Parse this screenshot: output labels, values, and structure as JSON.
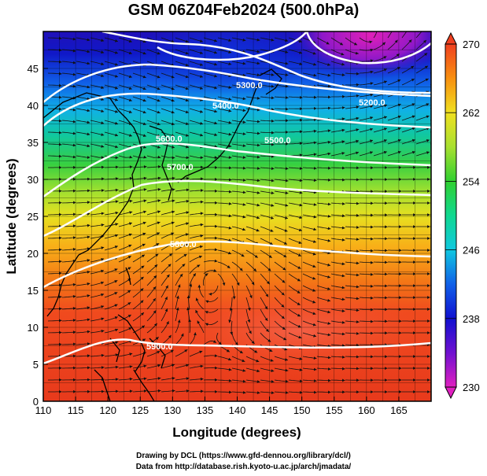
{
  "title": "GSM 06Z04Feb2024 (500.0hPa)",
  "chart_data": {
    "type": "heatmap",
    "title": "GSM 06Z04Feb2024 (500.0hPa)",
    "xlabel": "Longitude (degrees)",
    "ylabel": "Latitude  (degrees)",
    "xlim": [
      110,
      170
    ],
    "ylim": [
      0,
      50
    ],
    "x_ticks": [
      110,
      115,
      120,
      125,
      130,
      135,
      140,
      145,
      150,
      155,
      160,
      165
    ],
    "y_ticks": [
      0,
      5,
      10,
      15,
      20,
      25,
      30,
      35,
      40,
      45
    ],
    "x_tick_labels": [
      "110",
      "115",
      "120",
      "125",
      "130",
      "135",
      "140",
      "145",
      "150",
      "155",
      "160",
      "165"
    ],
    "y_tick_labels": [
      "0",
      "5",
      "10",
      "15",
      "20",
      "25",
      "30",
      "35",
      "40",
      "45"
    ],
    "grid": true,
    "colorbar": {
      "min": 230,
      "max": 270,
      "ticks": [
        230,
        238,
        246,
        254,
        262,
        270
      ],
      "tick_labels": [
        "230",
        "238",
        "246",
        "254",
        "262",
        "270"
      ],
      "colors": [
        "#e020c0",
        "#7010d0",
        "#1010d0",
        "#1060e8",
        "#10c8e0",
        "#10d890",
        "#30d030",
        "#a8e030",
        "#f0e020",
        "#f89010",
        "#f04020"
      ]
    },
    "contour_labels": [
      "5300.0",
      "5200.0",
      "5400.0",
      "5600.0",
      "5500.0",
      "5700.0",
      "5800.0",
      "5900.0"
    ]
  },
  "credits": {
    "line1": "Drawing by DCL (https://www.gfd-dennou.org/library/dcl/)",
    "line2": "Data from http://database.rish.kyoto-u.ac.jp/arch/jmadata/"
  }
}
